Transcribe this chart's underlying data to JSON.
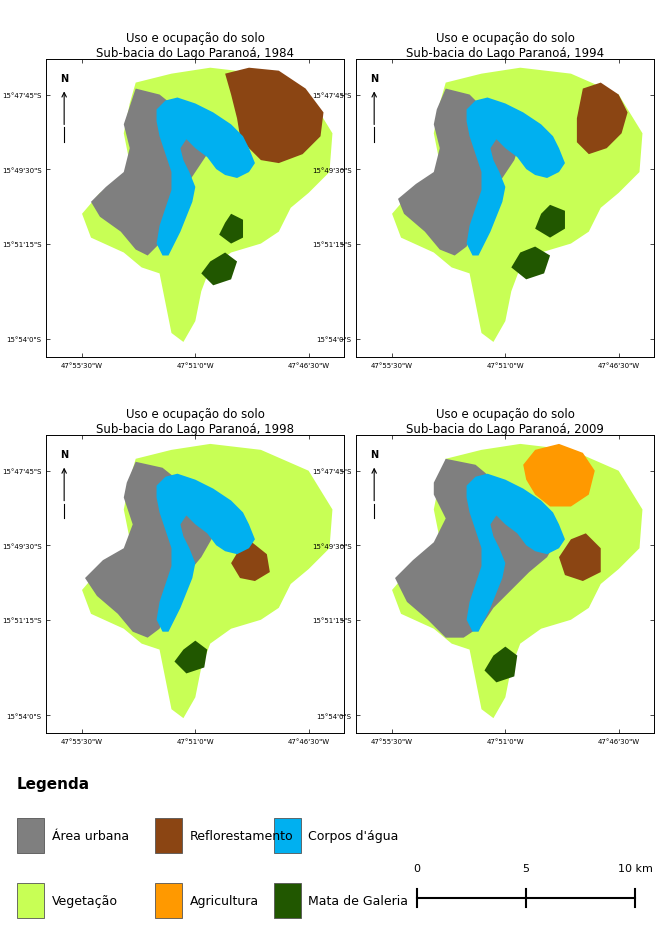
{
  "titles": [
    [
      "Uso e ocupação do solo",
      "Sub-bacia do Lago Paranoá, 1984"
    ],
    [
      "Uso e ocupação do solo",
      "Sub-bacia do Lago Paranoá, 1994"
    ],
    [
      "Uso e ocupação do solo",
      "Sub-bacia do Lago Paranoá, 1998"
    ],
    [
      "Uso e ocupação do solo",
      "Sub-bacia do Lago Paranoá, 2009"
    ]
  ],
  "x_ticks_labels": [
    "47°55'30\"W",
    "47°51'0\"W",
    "47°46'30\"W"
  ],
  "y_ticks_labels": [
    "15°47'45\"S",
    "15°49'30\"S",
    "15°51'15\"S",
    "15°54'0\"S"
  ],
  "colors": {
    "area_urbana": "#7f7f7f",
    "vegetacao": "#c8ff55",
    "reflorestamento": "#8B4513",
    "agricultura": "#ff9900",
    "corpos_dagua": "#00b0f0",
    "mata_galeria": "#215700",
    "background": "#ffffff"
  },
  "legend_items": [
    {
      "label": "Área urbana",
      "color": "#7f7f7f"
    },
    {
      "label": "Reflorestamento",
      "color": "#8B4513"
    },
    {
      "label": "Corpos d'água",
      "color": "#00b0f0"
    },
    {
      "label": "Vegetação",
      "color": "#c8ff55"
    },
    {
      "label": "Agricultura",
      "color": "#ff9900"
    },
    {
      "label": "Mata de Galeria",
      "color": "#215700"
    }
  ],
  "legend_title": "Legenda",
  "scale_bar": {
    "values": [
      0,
      5,
      10
    ],
    "unit": "km"
  },
  "title_fontsize": 8.5,
  "tick_fontsize": 5,
  "legend_fontsize": 9
}
